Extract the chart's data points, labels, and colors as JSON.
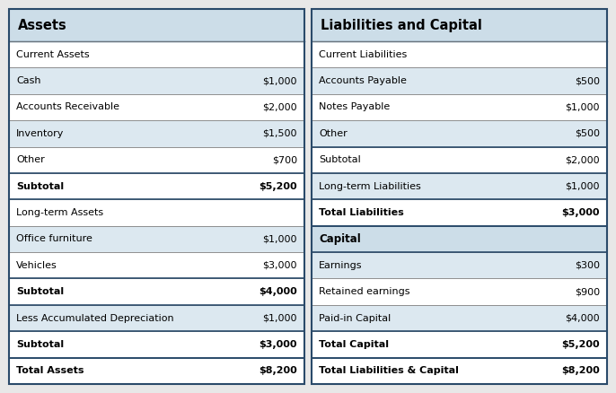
{
  "left_title": "Assets",
  "right_title": "Liabilities and Capital",
  "left_rows": [
    {
      "label": "Current Assets",
      "value": "",
      "style": "section_header",
      "bg": "#ffffff"
    },
    {
      "label": "  Cash",
      "value": "$1,000",
      "style": "item_alt",
      "bg": "#dce8f0"
    },
    {
      "label": "  Accounts Receivable",
      "value": "$2,000",
      "style": "item",
      "bg": "#ffffff"
    },
    {
      "label": "  Inventory",
      "value": "$1,500",
      "style": "item_alt",
      "bg": "#dce8f0"
    },
    {
      "label": "  Other",
      "value": "$700",
      "style": "item",
      "bg": "#ffffff"
    },
    {
      "label": "Subtotal",
      "value": "$5,200",
      "style": "subtotal",
      "bg": "#ffffff"
    },
    {
      "label": "Long-term Assets",
      "value": "",
      "style": "section_header",
      "bg": "#ffffff"
    },
    {
      "label": "  Office furniture",
      "value": "$1,000",
      "style": "item_alt",
      "bg": "#dce8f0"
    },
    {
      "label": "  Vehicles",
      "value": "$3,000",
      "style": "item",
      "bg": "#ffffff"
    },
    {
      "label": "Subtotal",
      "value": "$4,000",
      "style": "subtotal",
      "bg": "#ffffff"
    },
    {
      "label": "    Less Accumulated Depreciation",
      "value": "$1,000",
      "style": "item_alt",
      "bg": "#dce8f0"
    },
    {
      "label": "Subtotal",
      "value": "$3,000",
      "style": "subtotal",
      "bg": "#ffffff"
    },
    {
      "label": "Total Assets",
      "value": "$8,200",
      "style": "total",
      "bg": "#ffffff"
    }
  ],
  "right_rows": [
    {
      "label": "Current Liabilities",
      "value": "",
      "style": "section_header",
      "bg": "#ffffff"
    },
    {
      "label": "  Accounts Payable",
      "value": "$500",
      "style": "item_alt",
      "bg": "#dce8f0"
    },
    {
      "label": "  Notes Payable",
      "value": "$1,000",
      "style": "item",
      "bg": "#ffffff"
    },
    {
      "label": "  Other",
      "value": "$500",
      "style": "item_alt",
      "bg": "#dce8f0"
    },
    {
      "label": "Subtotal",
      "value": "$2,000",
      "style": "subtotal_plain",
      "bg": "#ffffff"
    },
    {
      "label": "  Long-term Liabilities",
      "value": "$1,000",
      "style": "item_alt",
      "bg": "#dce8f0"
    },
    {
      "label": "Total Liabilities",
      "value": "$3,000",
      "style": "subtotal",
      "bg": "#ffffff"
    },
    {
      "label": "Capital",
      "value": "",
      "style": "section_header2",
      "bg": "#dce8f0"
    },
    {
      "label": "  Earnings",
      "value": "$300",
      "style": "item_alt",
      "bg": "#dce8f0"
    },
    {
      "label": "  Retained earnings",
      "value": "$900",
      "style": "item",
      "bg": "#ffffff"
    },
    {
      "label": "  Paid-in Capital",
      "value": "$4,000",
      "style": "item_alt",
      "bg": "#dce8f0"
    },
    {
      "label": "Total Capital",
      "value": "$5,200",
      "style": "subtotal",
      "bg": "#ffffff"
    },
    {
      "label": "Total Liabilities & Capital",
      "value": "$8,200",
      "style": "total",
      "bg": "#ffffff"
    }
  ],
  "title_bg": "#ccdde8",
  "fig_bg": "#ffffff",
  "outer_bg": "#e8e8e8",
  "border_color": "#2a4a6a",
  "thin_border": "#888888",
  "fig_width": 6.86,
  "fig_height": 4.38
}
